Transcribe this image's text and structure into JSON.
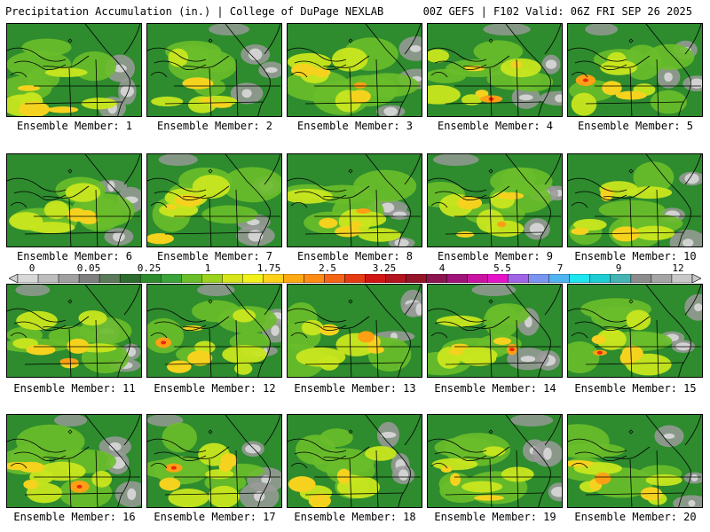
{
  "header": {
    "left": "Precipitation Accumulation (in.) | College of DuPage NEXLAB",
    "right": "00Z GEFS | F102 Valid: 06Z FRI SEP 26 2025"
  },
  "members": [
    {
      "label": "Ensemble Member: 1"
    },
    {
      "label": "Ensemble Member: 2"
    },
    {
      "label": "Ensemble Member: 3"
    },
    {
      "label": "Ensemble Member: 4"
    },
    {
      "label": "Ensemble Member: 5"
    },
    {
      "label": "Ensemble Member: 6"
    },
    {
      "label": "Ensemble Member: 7"
    },
    {
      "label": "Ensemble Member: 8"
    },
    {
      "label": "Ensemble Member: 9"
    },
    {
      "label": "Ensemble Member: 10"
    },
    {
      "label": "Ensemble Member: 11"
    },
    {
      "label": "Ensemble Member: 12"
    },
    {
      "label": "Ensemble Member: 13"
    },
    {
      "label": "Ensemble Member: 14"
    },
    {
      "label": "Ensemble Member: 15"
    },
    {
      "label": "Ensemble Member: 16"
    },
    {
      "label": "Ensemble Member: 17"
    },
    {
      "label": "Ensemble Member: 18"
    },
    {
      "label": "Ensemble Member: 19"
    },
    {
      "label": "Ensemble Member: 20"
    }
  ],
  "colorbar": {
    "ticks": [
      "0",
      "0.05",
      "0.25",
      "1",
      "1.75",
      "2.5",
      "3.25",
      "4",
      "5.5",
      "7",
      "9",
      "12"
    ],
    "colors": [
      "#d8d8d8",
      "#bdbdbd",
      "#a0a0a0",
      "#7f7f7f",
      "#5a7a5a",
      "#2e6b2e",
      "#2e8b2e",
      "#3aa33a",
      "#6abe2a",
      "#9ad21e",
      "#d6e61a",
      "#f2f21a",
      "#ffd11a",
      "#ffaa14",
      "#ff8c14",
      "#f46414",
      "#e63c14",
      "#d21414",
      "#b4141e",
      "#961428",
      "#8c1450",
      "#a0147a",
      "#c814a0",
      "#e614c8",
      "#a064e6",
      "#7896f0",
      "#50b4f0",
      "#1ee6f0",
      "#1ecdd2",
      "#46b4b4",
      "#8c8c8c",
      "#a5a5a5",
      "#c8c8c8"
    ]
  },
  "colors": {
    "base": "#2e8b2e",
    "light_green": "#6abe2a",
    "lime": "#c8e61e",
    "yellow": "#f5d21e",
    "orange": "#ffa014",
    "red": "#e62814",
    "gray": "#9a9a9a",
    "light_gray": "#d2d2d2"
  }
}
